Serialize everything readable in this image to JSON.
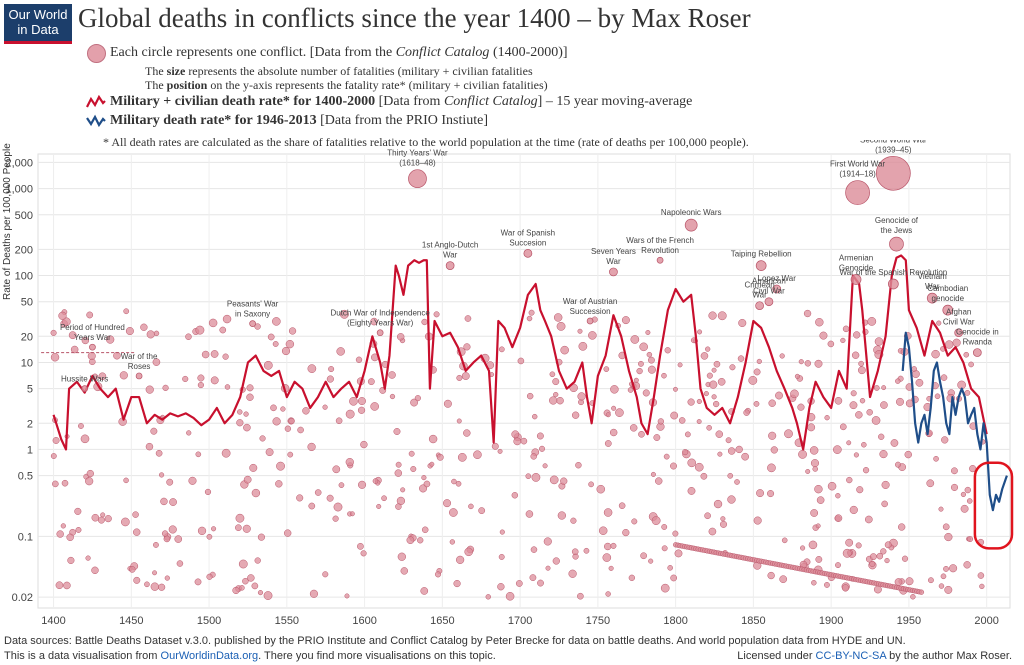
{
  "logo": {
    "line1": "Our World",
    "line2": "in Data"
  },
  "title": "Global deaths in conflicts since the year 1400 – by Max Roser",
  "legend": {
    "circle_text_a": "Each circle represents one conflict. [Data from the ",
    "circle_text_b": "Conflict Catalog",
    "circle_text_c": " (1400-2000)]",
    "size_a": "The ",
    "size_b": "size",
    "size_c": " represents the absolute number of fatalities (military + civilian fatalities",
    "pos_a": "The ",
    "pos_b": "position",
    "pos_c": " on the y-axis represents the fatality rate* (military + civilian fatalities)",
    "red_a": "Military + civilian death rate* for 1400-2000",
    "red_b": " [Data from ",
    "red_c": "Conflict Catalog",
    "red_d": "] – 15 year moving-average",
    "blue_a": "Military death rate* for 1946-2013",
    "blue_b": " [Data from the PRIO Instiute]",
    "note": "* All death rates are calculated as the share of fatalities relative to the world population at the time (rate of deaths per 100,000 people)."
  },
  "footer": {
    "line1": "Data sources: Battle Deaths Dataset v.3.0. published by the PRIO Institute and Conflict Catalog by Peter Brecke for data on battle deaths. And world population data from HYDE and UN.",
    "line2_a": "This is a data visualisation from ",
    "line2_b": "OurWorldinData.org",
    "line2_c": ". There you find more visualisations on this topic.",
    "license_a": "Licensed under ",
    "license_b": "CC-BY-NC-SA",
    "license_c": " by the author Max Roser."
  },
  "colors": {
    "red_line": "#c8102e",
    "blue_line": "#1f4e89",
    "bubble_fill": "#dc8c99",
    "bubble_stroke": "#b85468",
    "highlight": "#e0141e"
  },
  "chart_data": {
    "type": "scatter",
    "ylabel": "Rate of Deaths per 100,000 People",
    "xlim": [
      1390,
      2015
    ],
    "ylim": [
      0.015,
      2500
    ],
    "yscale": "log",
    "x_ticks": [
      "1400",
      "1450",
      "1500",
      "1550",
      "1600",
      "1650",
      "1700",
      "1750",
      "1800",
      "1850",
      "1900",
      "1950",
      "2000"
    ],
    "y_ticks": [
      {
        "value": 2000,
        "label": "2,000"
      },
      {
        "value": 1000,
        "label": "1,000"
      },
      {
        "value": 500,
        "label": "500"
      },
      {
        "value": 200,
        "label": "200"
      },
      {
        "value": 100,
        "label": "100"
      },
      {
        "value": 50,
        "label": "50"
      },
      {
        "value": 20,
        "label": "20"
      },
      {
        "value": 10,
        "label": "10"
      },
      {
        "value": 5,
        "label": "5"
      },
      {
        "value": 2,
        "label": "2"
      },
      {
        "value": 1,
        "label": "1"
      },
      {
        "value": 0.5,
        "label": "0.5"
      },
      {
        "value": 0.1,
        "label": "0.1"
      },
      {
        "value": 0.02,
        "label": "0.02"
      }
    ],
    "red_series": {
      "name": "Military + civilian death rate* for 1400-2000",
      "points": [
        [
          1400,
          2.5
        ],
        [
          1405,
          1.3
        ],
        [
          1408,
          1
        ],
        [
          1410,
          5
        ],
        [
          1415,
          6
        ],
        [
          1420,
          4.5
        ],
        [
          1425,
          7
        ],
        [
          1430,
          5
        ],
        [
          1435,
          4
        ],
        [
          1440,
          5
        ],
        [
          1445,
          2.2
        ],
        [
          1450,
          4
        ],
        [
          1455,
          4
        ],
        [
          1460,
          2
        ],
        [
          1465,
          2.5
        ],
        [
          1470,
          2.2
        ],
        [
          1475,
          2.6
        ],
        [
          1480,
          2.4
        ],
        [
          1485,
          2.6
        ],
        [
          1490,
          2.3
        ],
        [
          1495,
          1.9
        ],
        [
          1500,
          2.2
        ],
        [
          1505,
          3
        ],
        [
          1510,
          2
        ],
        [
          1515,
          2.5
        ],
        [
          1520,
          4
        ],
        [
          1525,
          10
        ],
        [
          1530,
          12
        ],
        [
          1535,
          8
        ],
        [
          1540,
          7
        ],
        [
          1545,
          8
        ],
        [
          1550,
          4
        ],
        [
          1555,
          6
        ],
        [
          1560,
          5
        ],
        [
          1565,
          3
        ],
        [
          1570,
          4
        ],
        [
          1575,
          6
        ],
        [
          1580,
          4
        ],
        [
          1585,
          5
        ],
        [
          1590,
          6
        ],
        [
          1595,
          4
        ],
        [
          1600,
          8
        ],
        [
          1605,
          20
        ],
        [
          1610,
          10
        ],
        [
          1613,
          5
        ],
        [
          1616,
          12
        ],
        [
          1620,
          130
        ],
        [
          1622,
          100
        ],
        [
          1625,
          60
        ],
        [
          1628,
          130
        ],
        [
          1632,
          150
        ],
        [
          1635,
          140
        ],
        [
          1638,
          150
        ],
        [
          1640,
          150
        ],
        [
          1642,
          5
        ],
        [
          1645,
          30
        ],
        [
          1650,
          20
        ],
        [
          1655,
          22
        ],
        [
          1660,
          15
        ],
        [
          1665,
          8
        ],
        [
          1670,
          10
        ],
        [
          1675,
          12
        ],
        [
          1680,
          8
        ],
        [
          1683,
          1.2
        ],
        [
          1686,
          30
        ],
        [
          1690,
          25
        ],
        [
          1695,
          15
        ],
        [
          1700,
          25
        ],
        [
          1705,
          60
        ],
        [
          1710,
          80
        ],
        [
          1713,
          40
        ],
        [
          1716,
          30
        ],
        [
          1720,
          20
        ],
        [
          1725,
          8
        ],
        [
          1730,
          5
        ],
        [
          1735,
          6
        ],
        [
          1740,
          10
        ],
        [
          1743,
          4
        ],
        [
          1746,
          2
        ],
        [
          1750,
          7
        ],
        [
          1755,
          12
        ],
        [
          1760,
          35
        ],
        [
          1765,
          20
        ],
        [
          1770,
          8
        ],
        [
          1775,
          4
        ],
        [
          1778,
          2
        ],
        [
          1782,
          1.5
        ],
        [
          1786,
          4
        ],
        [
          1790,
          12
        ],
        [
          1795,
          40
        ],
        [
          1800,
          70
        ],
        [
          1805,
          50
        ],
        [
          1810,
          60
        ],
        [
          1813,
          20
        ],
        [
          1816,
          5
        ],
        [
          1820,
          3
        ],
        [
          1825,
          2.5
        ],
        [
          1830,
          3
        ],
        [
          1835,
          2
        ],
        [
          1840,
          4
        ],
        [
          1845,
          10
        ],
        [
          1850,
          30
        ],
        [
          1855,
          25
        ],
        [
          1860,
          15
        ],
        [
          1865,
          8
        ],
        [
          1870,
          5
        ],
        [
          1875,
          3
        ],
        [
          1878,
          2
        ],
        [
          1882,
          1
        ],
        [
          1886,
          3
        ],
        [
          1890,
          6
        ],
        [
          1895,
          4
        ],
        [
          1900,
          3
        ],
        [
          1905,
          8
        ],
        [
          1910,
          5
        ],
        [
          1914,
          100
        ],
        [
          1918,
          80
        ],
        [
          1920,
          40
        ],
        [
          1925,
          4
        ],
        [
          1930,
          8
        ],
        [
          1935,
          20
        ],
        [
          1939,
          100
        ],
        [
          1942,
          160
        ],
        [
          1945,
          170
        ],
        [
          1948,
          150
        ],
        [
          1950,
          40
        ],
        [
          1955,
          25
        ],
        [
          1960,
          12
        ],
        [
          1965,
          30
        ],
        [
          1970,
          22
        ],
        [
          1975,
          12
        ],
        [
          1980,
          15
        ],
        [
          1985,
          10
        ],
        [
          1990,
          5
        ],
        [
          1995,
          4
        ],
        [
          2000,
          1.5
        ]
      ]
    },
    "blue_series": {
      "name": "Military death rate* for 1946-2013",
      "points": [
        [
          1946,
          8
        ],
        [
          1948,
          22
        ],
        [
          1950,
          15
        ],
        [
          1952,
          6
        ],
        [
          1954,
          2
        ],
        [
          1956,
          1.2
        ],
        [
          1958,
          2
        ],
        [
          1960,
          2.5
        ],
        [
          1962,
          1.5
        ],
        [
          1964,
          3
        ],
        [
          1966,
          8
        ],
        [
          1968,
          10
        ],
        [
          1970,
          6
        ],
        [
          1972,
          4
        ],
        [
          1974,
          2
        ],
        [
          1976,
          1.5
        ],
        [
          1978,
          4
        ],
        [
          1980,
          2.5
        ],
        [
          1982,
          4
        ],
        [
          1984,
          5
        ],
        [
          1986,
          4
        ],
        [
          1988,
          2
        ],
        [
          1990,
          2.5
        ],
        [
          1992,
          3
        ],
        [
          1994,
          1.5
        ],
        [
          1996,
          1
        ],
        [
          1998,
          2
        ],
        [
          2000,
          1.2
        ],
        [
          2002,
          0.3
        ],
        [
          2004,
          0.2
        ],
        [
          2006,
          0.3
        ],
        [
          2008,
          0.25
        ],
        [
          2010,
          0.35
        ],
        [
          2013,
          0.5
        ]
      ]
    },
    "labeled_bubbles": [
      {
        "x": 1634,
        "y": 1300,
        "r": 9,
        "label": "Thirty Years' War\n(1618–48)"
      },
      {
        "x": 1940,
        "y": 1500,
        "r": 17,
        "label": "Second World War\n(1939–45)"
      },
      {
        "x": 1917,
        "y": 900,
        "r": 12,
        "label": "First World War\n(1914–18)"
      },
      {
        "x": 1810,
        "y": 380,
        "r": 6,
        "label": "Napoleonic Wars"
      },
      {
        "x": 1942,
        "y": 230,
        "r": 7,
        "label": "Genocide of\nthe Jews"
      },
      {
        "x": 1705,
        "y": 180,
        "r": 4,
        "label": "War of Spanish\nSuccesion"
      },
      {
        "x": 1655,
        "y": 130,
        "r": 4,
        "label": "1st Anglo-Dutch\nWar"
      },
      {
        "x": 1760,
        "y": 110,
        "r": 4,
        "label": "Seven Years\nWar"
      },
      {
        "x": 1855,
        "y": 130,
        "r": 5,
        "label": "Taiping Rebellion"
      },
      {
        "x": 1916,
        "y": 90,
        "r": 5,
        "label": "Armenian\nGenocide"
      },
      {
        "x": 1940,
        "y": 80,
        "r": 5,
        "label": "War of the Spanish Revolution"
      },
      {
        "x": 1865,
        "y": 70,
        "r": 4,
        "label": "Lopez War"
      },
      {
        "x": 1860,
        "y": 50,
        "r": 4,
        "label": "American\nCivil War"
      },
      {
        "x": 1854,
        "y": 45,
        "r": 4,
        "label": "Crimean\nWar"
      },
      {
        "x": 1965,
        "y": 55,
        "r": 5,
        "label": "Vietnam\nWar"
      },
      {
        "x": 1975,
        "y": 40,
        "r": 5,
        "label": "Cambodian\ngenocide"
      },
      {
        "x": 1982,
        "y": 22,
        "r": 4,
        "label": "Afghan\nCivil War"
      },
      {
        "x": 1994,
        "y": 13,
        "r": 4,
        "label": "Genocide in\nRwanda"
      },
      {
        "x": 1745,
        "y": 30,
        "r": 3,
        "label": "War of Austrian\nSuccession"
      },
      {
        "x": 1790,
        "y": 150,
        "r": 3,
        "label": "Wars of the French\nRevolution"
      },
      {
        "x": 1528,
        "y": 28,
        "r": 3,
        "label": "Peasants' War\nin Saxony"
      },
      {
        "x": 1610,
        "y": 22,
        "r": 3,
        "label": "Dutch War of Independence\n(Eighty Years War)"
      },
      {
        "x": 1420,
        "y": 5,
        "r": 3,
        "label": "Hussite Wars"
      },
      {
        "x": 1455,
        "y": 7,
        "r": 3,
        "label": "War of the\nRoses"
      },
      {
        "x": 1425,
        "y": 15,
        "r": 3,
        "label": "Period of Hundred\nYears War"
      }
    ],
    "highlight_region": {
      "x_from": 1995,
      "x_to": 2015,
      "y_from": 0.1,
      "y_to": 0.6
    },
    "grid": true,
    "legend": "top-left"
  }
}
